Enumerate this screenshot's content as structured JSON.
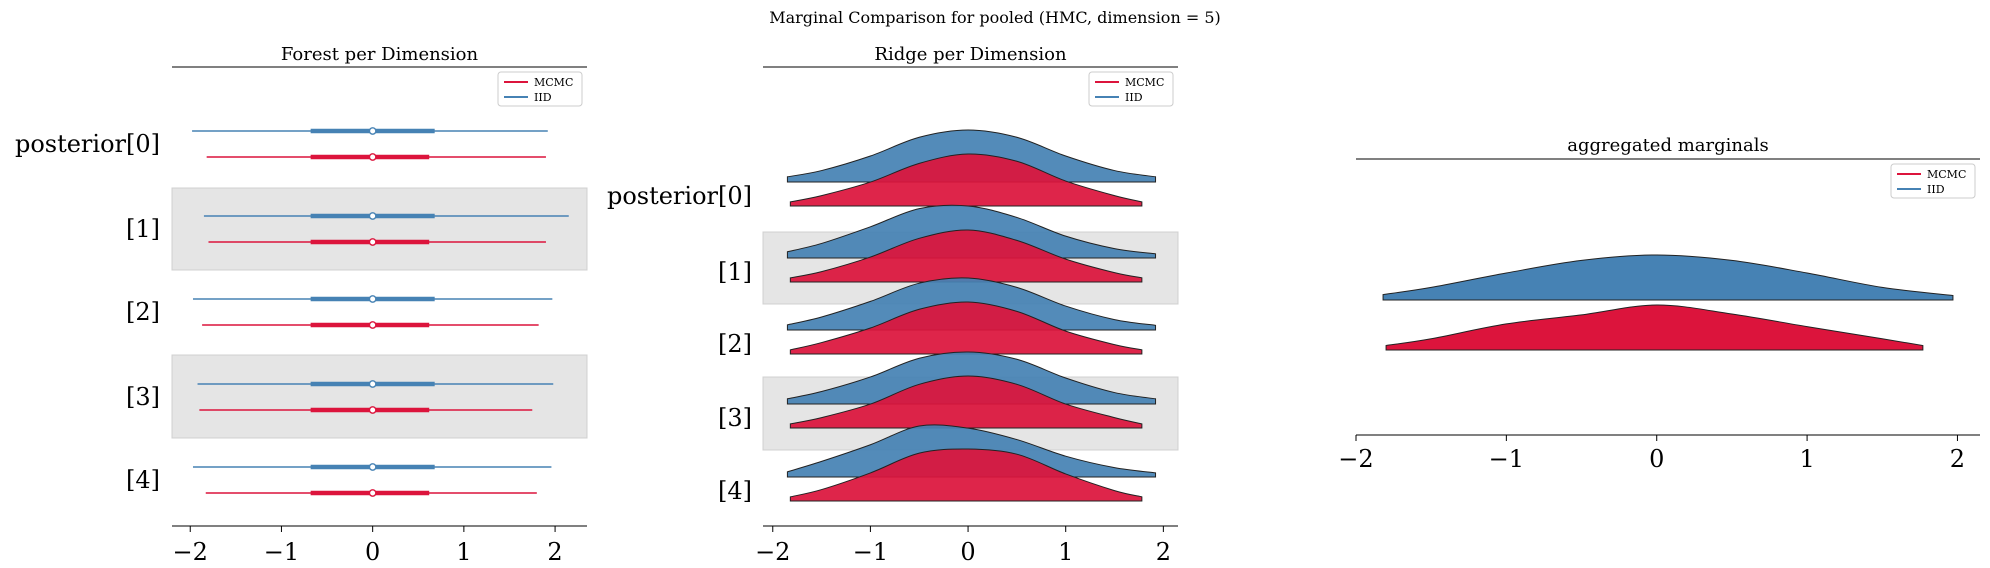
{
  "suptitle": "Marginal Comparison for pooled (HMC, dimension = 5)",
  "colors": {
    "mcmc": "#dc143c",
    "iid": "#4682b4",
    "band": "#e5e5e5",
    "outline": "#222222"
  },
  "chart_data": [
    {
      "type": "forest",
      "title": "Forest per Dimension",
      "categories": [
        "posterior[0]",
        "[1]",
        "[2]",
        "[3]",
        "[4]"
      ],
      "xticks": [
        -2,
        -1,
        0,
        1,
        2
      ],
      "xlim": [
        -2.2,
        2.35
      ],
      "legend": {
        "placement": "top-right",
        "entries": [
          "MCMC",
          "IID"
        ]
      },
      "series": [
        {
          "name": "MCMC",
          "color": "#dc143c",
          "median": [
            0.0,
            0.0,
            0.0,
            0.0,
            0.0
          ],
          "hdi_inner": [
            [
              -0.68,
              0.62
            ],
            [
              -0.68,
              0.62
            ],
            [
              -0.68,
              0.62
            ],
            [
              -0.68,
              0.62
            ],
            [
              -0.68,
              0.62
            ]
          ],
          "hdi_outer": [
            [
              -1.82,
              1.9
            ],
            [
              -1.8,
              1.9
            ],
            [
              -1.87,
              1.82
            ],
            [
              -1.9,
              1.75
            ],
            [
              -1.83,
              1.8
            ]
          ]
        },
        {
          "name": "IID",
          "color": "#4682b4",
          "median": [
            0.0,
            0.0,
            0.0,
            0.0,
            0.0
          ],
          "hdi_inner": [
            [
              -0.68,
              0.68
            ],
            [
              -0.68,
              0.68
            ],
            [
              -0.68,
              0.68
            ],
            [
              -0.68,
              0.68
            ],
            [
              -0.68,
              0.68
            ]
          ],
          "hdi_outer": [
            [
              -1.98,
              1.92
            ],
            [
              -1.85,
              2.15
            ],
            [
              -1.97,
              1.97
            ],
            [
              -1.92,
              1.98
            ],
            [
              -1.97,
              1.96
            ]
          ]
        }
      ]
    },
    {
      "type": "ridge",
      "title": "Ridge per Dimension",
      "categories": [
        "posterior[0]",
        "[1]",
        "[2]",
        "[3]",
        "[4]"
      ],
      "xticks": [
        -2,
        -1,
        0,
        1,
        2
      ],
      "xlim": [
        -2.1,
        2.15
      ],
      "legend": {
        "placement": "top-right",
        "entries": [
          "MCMC",
          "IID"
        ]
      },
      "series": [
        {
          "name": "IID",
          "color": "#4682b4",
          "x": [
            -1.85,
            -1.5,
            -1.0,
            -0.5,
            0.0,
            0.5,
            1.0,
            1.5,
            1.92
          ],
          "density": [
            [
              0.1,
              0.22,
              0.5,
              0.86,
              1.0,
              0.86,
              0.5,
              0.22,
              0.1
            ],
            [
              0.12,
              0.28,
              0.6,
              0.95,
              1.0,
              0.78,
              0.42,
              0.18,
              0.08
            ],
            [
              0.1,
              0.25,
              0.55,
              0.9,
              1.0,
              0.82,
              0.46,
              0.2,
              0.09
            ],
            [
              0.1,
              0.24,
              0.52,
              0.88,
              1.0,
              0.86,
              0.5,
              0.22,
              0.1
            ],
            [
              0.1,
              0.3,
              0.62,
              0.98,
              0.94,
              0.72,
              0.4,
              0.18,
              0.08
            ]
          ]
        },
        {
          "name": "MCMC",
          "color": "#dc143c",
          "x": [
            -1.82,
            -1.5,
            -1.0,
            -0.5,
            0.0,
            0.5,
            1.0,
            1.5,
            1.78
          ],
          "density": [
            [
              0.08,
              0.2,
              0.46,
              0.82,
              1.0,
              0.86,
              0.48,
              0.2,
              0.08
            ],
            [
              0.08,
              0.2,
              0.48,
              0.84,
              1.0,
              0.8,
              0.44,
              0.18,
              0.08
            ],
            [
              0.08,
              0.22,
              0.5,
              0.86,
              1.0,
              0.82,
              0.44,
              0.18,
              0.08
            ],
            [
              0.08,
              0.2,
              0.46,
              0.84,
              1.0,
              0.84,
              0.46,
              0.2,
              0.08
            ],
            [
              0.08,
              0.22,
              0.54,
              0.92,
              1.0,
              0.9,
              0.52,
              0.2,
              0.08
            ]
          ]
        }
      ]
    },
    {
      "type": "ridge",
      "title": "aggregated marginals",
      "categories": [],
      "xticks": [
        -2,
        -1,
        0,
        1,
        2
      ],
      "xlim": [
        -2.0,
        2.15
      ],
      "legend": {
        "placement": "top-right",
        "entries": [
          "MCMC",
          "IID"
        ]
      },
      "series": [
        {
          "name": "IID",
          "color": "#4682b4",
          "x": [
            -1.82,
            -1.5,
            -1.0,
            -0.5,
            0.0,
            0.5,
            1.0,
            1.5,
            1.97
          ],
          "density": [
            0.12,
            0.28,
            0.6,
            0.88,
            1.0,
            0.88,
            0.6,
            0.28,
            0.1
          ]
        },
        {
          "name": "MCMC",
          "color": "#dc143c",
          "x": [
            -1.8,
            -1.5,
            -1.0,
            -0.5,
            0.0,
            0.5,
            1.0,
            1.5,
            1.77
          ],
          "density": [
            0.1,
            0.25,
            0.58,
            0.78,
            1.0,
            0.8,
            0.52,
            0.25,
            0.1
          ]
        }
      ]
    }
  ]
}
